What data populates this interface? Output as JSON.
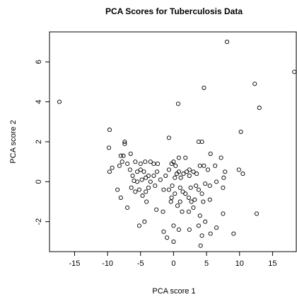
{
  "chart_data": {
    "type": "scatter",
    "title": "PCA Scores for Tuberculosis Data",
    "xlabel": "PCA score  1",
    "ylabel": "PCA score  2",
    "x": [
      -17.3,
      8.1,
      18.3,
      12.3,
      4.6,
      13.0,
      0.7,
      10.2,
      -9.7,
      -0.7,
      -9.8,
      12.6,
      9.9,
      10.5,
      9.1,
      3.8,
      4.3,
      5.6,
      7.2,
      -7.4,
      -7.4,
      -8,
      -7.6,
      -7.8,
      -8.2,
      -7,
      -6.5,
      -5.8,
      -5,
      -4.3,
      -3.5,
      -3,
      -2.4,
      -9.3,
      -9.7,
      -8.5,
      -8.0,
      -6.6,
      -6.2,
      -5.5,
      -5,
      -4.5,
      -6,
      -5.5,
      -4.8,
      -4.2,
      -3.8,
      -6.4,
      -5.8,
      -5.2,
      -4.7,
      -4.2,
      -3.8,
      -3.5,
      -3,
      -2.8,
      -2.5,
      -2,
      -1.5,
      -1.2,
      -7,
      -4.1,
      -5.2,
      -4.4,
      -2.6,
      -1.6,
      -0.4,
      -1.5,
      -1.0,
      0,
      0,
      0.8,
      1.3,
      2.3,
      2.4,
      4,
      3.8,
      4.8,
      4.3,
      4.1,
      5.6,
      6.5,
      7.5,
      0.5,
      0.8,
      1.1,
      1.5,
      2,
      2.4,
      3,
      3.5,
      4,
      4.6,
      5.2,
      1,
      1.4,
      1.8,
      2.3,
      2.7,
      3.2,
      3.8,
      4.3,
      4.8,
      5.5,
      6.5,
      7.6,
      7.5,
      7.8,
      0.2,
      -0.3,
      0.6,
      1.0,
      -0.7,
      -0.3,
      0,
      0.3,
      0.8,
      1.8,
      2.4,
      2.6,
      3.4,
      6.3,
      5.5,
      4.5,
      3,
      -0.2,
      -0.7,
      0.2
    ],
    "y": [
      4.0,
      7.0,
      5.5,
      4.9,
      4.7,
      3.7,
      3.9,
      2.5,
      2.6,
      2.2,
      1.7,
      -1.6,
      0.6,
      0.4,
      -2.6,
      2.0,
      2.0,
      1.4,
      1.2,
      1.9,
      2.0,
      1.3,
      1.3,
      1.0,
      0.8,
      0.9,
      1.4,
      1.0,
      0.9,
      1.0,
      1.0,
      0.9,
      0.9,
      0.7,
      0.5,
      -0.4,
      -0.8,
      0.6,
      0.3,
      0.5,
      0.6,
      0.5,
      0.05,
      0,
      0.1,
      0.2,
      0.3,
      -0.3,
      -0.5,
      -0.4,
      -0.7,
      -0.5,
      -0.3,
      0,
      0.3,
      -0.2,
      0.5,
      0.1,
      -0.4,
      0.3,
      -1.3,
      -1.0,
      -2.2,
      -2.0,
      -1.4,
      -1.5,
      -1.0,
      -2.5,
      -2.8,
      -2.2,
      -3.0,
      -2.4,
      -1.5,
      -1.5,
      -2.4,
      -1.7,
      -2.2,
      -2.0,
      -2.7,
      -3.2,
      -2.6,
      -2.3,
      -1.6,
      0.4,
      0.5,
      0.2,
      0.4,
      0.5,
      0.3,
      0.5,
      0.4,
      0.8,
      0.8,
      0.6,
      -0.3,
      -0.5,
      -0.6,
      -0.8,
      -1.0,
      -0.9,
      -0.4,
      -0.6,
      -0.1,
      -0.2,
      0,
      0.2,
      -0.3,
      0.5,
      -0.6,
      -0.8,
      -1.2,
      -1.0,
      0.6,
      0.9,
      1.0,
      0.8,
      1.2,
      1.2,
      0.6,
      -0.3,
      -0.2,
      0.8,
      -0.9,
      -1.0,
      -1.3,
      -0.2,
      -0.4,
      0.2
    ],
    "xlim": [
      -18.8,
      18.6
    ],
    "ylim": [
      -3.5,
      7.5
    ],
    "xticks": [
      -15,
      -10,
      -5,
      0,
      5,
      10,
      15
    ],
    "yticks": [
      -2,
      0,
      2,
      4,
      6
    ],
    "color": "#000000"
  }
}
